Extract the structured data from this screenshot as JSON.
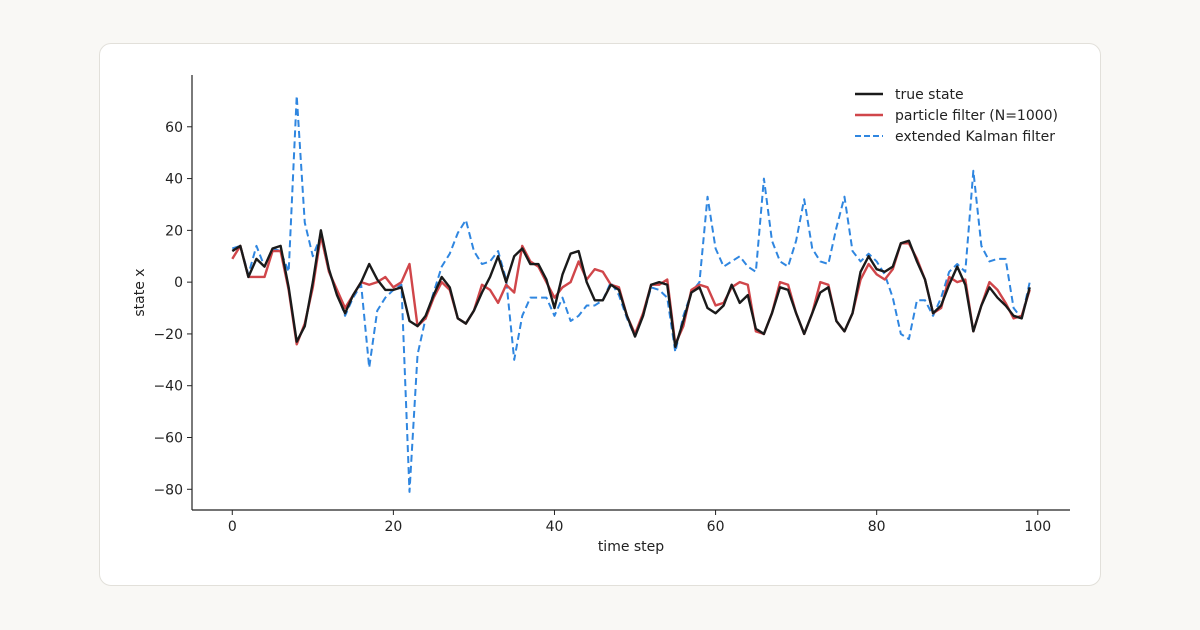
{
  "chart_data": {
    "type": "line",
    "title": "",
    "xlabel": "time step",
    "ylabel": "state x",
    "xlim": [
      -5,
      104
    ],
    "ylim": [
      -88,
      80
    ],
    "xticks": [
      0,
      20,
      40,
      60,
      80,
      100
    ],
    "yticks": [
      -80,
      -60,
      -40,
      -20,
      0,
      20,
      40,
      60
    ],
    "grid": false,
    "legend_position": "top-right",
    "x": [
      0,
      1,
      2,
      3,
      4,
      5,
      6,
      7,
      8,
      9,
      10,
      11,
      12,
      13,
      14,
      15,
      16,
      17,
      18,
      19,
      20,
      21,
      22,
      23,
      24,
      25,
      26,
      27,
      28,
      29,
      30,
      31,
      32,
      33,
      34,
      35,
      36,
      37,
      38,
      39,
      40,
      41,
      42,
      43,
      44,
      45,
      46,
      47,
      48,
      49,
      50,
      51,
      52,
      53,
      54,
      55,
      56,
      57,
      58,
      59,
      60,
      61,
      62,
      63,
      64,
      65,
      66,
      67,
      68,
      69,
      70,
      71,
      72,
      73,
      74,
      75,
      76,
      77,
      78,
      79,
      80,
      81,
      82,
      83,
      84,
      85,
      86,
      87,
      88,
      89,
      90,
      91,
      92,
      93,
      94,
      95,
      96,
      97,
      98,
      99
    ],
    "series": [
      {
        "name": "true state",
        "color": "#1a1a1a",
        "style": "solid",
        "values": [
          12,
          14,
          2,
          9,
          6,
          13,
          14,
          -2,
          -23,
          -17,
          0,
          20,
          5,
          -5,
          -12,
          -5,
          0,
          7,
          1,
          -3,
          -3,
          -2,
          -15,
          -17,
          -13,
          -5,
          2,
          -2,
          -14,
          -16,
          -11,
          -4,
          2,
          10,
          0,
          10,
          13,
          7,
          7,
          1,
          -10,
          3,
          11,
          12,
          0,
          -7,
          -7,
          -1,
          -3,
          -13,
          -21,
          -13,
          -1,
          0,
          -1,
          -25,
          -15,
          -4,
          -2,
          -10,
          -12,
          -9,
          -1,
          -8,
          -5,
          -18,
          -20,
          -12,
          -2,
          -3,
          -12,
          -20,
          -12,
          -4,
          -2,
          -15,
          -19,
          -12,
          4,
          10,
          5,
          4,
          6,
          15,
          16,
          8,
          1,
          -12,
          -9,
          -1,
          6,
          -1,
          -19,
          -9,
          -2,
          -6,
          -9,
          -13,
          -14,
          -2
        ]
      },
      {
        "name": "particle filter (N=1000)",
        "color": "#d0464a",
        "style": "solid",
        "values": [
          9,
          14,
          2,
          2,
          2,
          12,
          12,
          -3,
          -24,
          -16,
          -2,
          18,
          4,
          -3,
          -10,
          -5,
          0,
          -1,
          0,
          2,
          -2,
          0,
          7,
          -17,
          -14,
          -6,
          0,
          -3,
          -14,
          -16,
          -11,
          -1,
          -3,
          -8,
          -1,
          -4,
          14,
          8,
          6,
          0,
          -6,
          -2,
          0,
          8,
          1,
          5,
          4,
          -1,
          -2,
          -13,
          -20,
          -12,
          -1,
          -1,
          1,
          -24,
          -17,
          -3,
          -1,
          -2,
          -9,
          -8,
          -2,
          0,
          -1,
          -19,
          -20,
          -12,
          0,
          -1,
          -12,
          -20,
          -12,
          0,
          -1,
          -15,
          -19,
          -12,
          1,
          7,
          3,
          1,
          5,
          15,
          15,
          9,
          1,
          -12,
          -10,
          2,
          0,
          1,
          -19,
          -9,
          0,
          -3,
          -8,
          -14,
          -13,
          -3
        ]
      },
      {
        "name": "extended Kalman filter",
        "color": "#2f86e0",
        "style": "dashed",
        "values": [
          13,
          14,
          3,
          14,
          6,
          13,
          12,
          4,
          72,
          23,
          10,
          18,
          4,
          -4,
          -13,
          -6,
          -1,
          -33,
          -11,
          -6,
          -3,
          -1,
          -81,
          -28,
          -14,
          -4,
          6,
          11,
          19,
          24,
          12,
          7,
          8,
          12,
          1,
          -30,
          -13,
          -6,
          -6,
          -6,
          -13,
          -6,
          -15,
          -13,
          -9,
          -9,
          -7,
          0,
          -5,
          -14,
          -21,
          -13,
          -2,
          -3,
          -6,
          -27,
          -13,
          -4,
          0,
          33,
          13,
          6,
          8,
          10,
          6,
          4,
          40,
          16,
          8,
          6,
          16,
          32,
          13,
          8,
          7,
          21,
          33,
          12,
          8,
          11,
          8,
          3,
          -6,
          -20,
          -22,
          -7,
          -7,
          -13,
          -6,
          4,
          7,
          4,
          43,
          14,
          8,
          9,
          9,
          -10,
          -14,
          0
        ]
      }
    ]
  }
}
